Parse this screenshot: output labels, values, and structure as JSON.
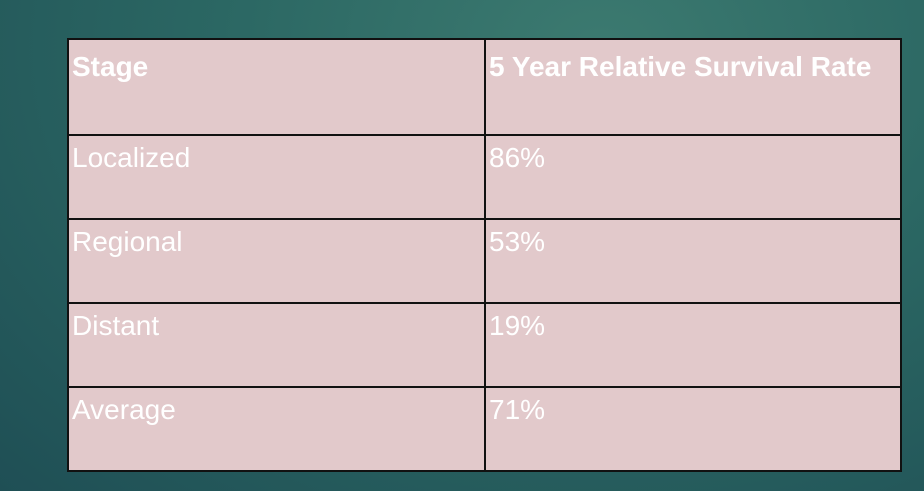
{
  "table": {
    "header": [
      "Stage",
      "5 Year Relative Survival Rate"
    ],
    "rows": [
      [
        "Localized",
        "86%"
      ],
      [
        "Regional",
        "53%"
      ],
      [
        "Distant",
        "19%"
      ],
      [
        "Average",
        "71%"
      ]
    ]
  }
}
